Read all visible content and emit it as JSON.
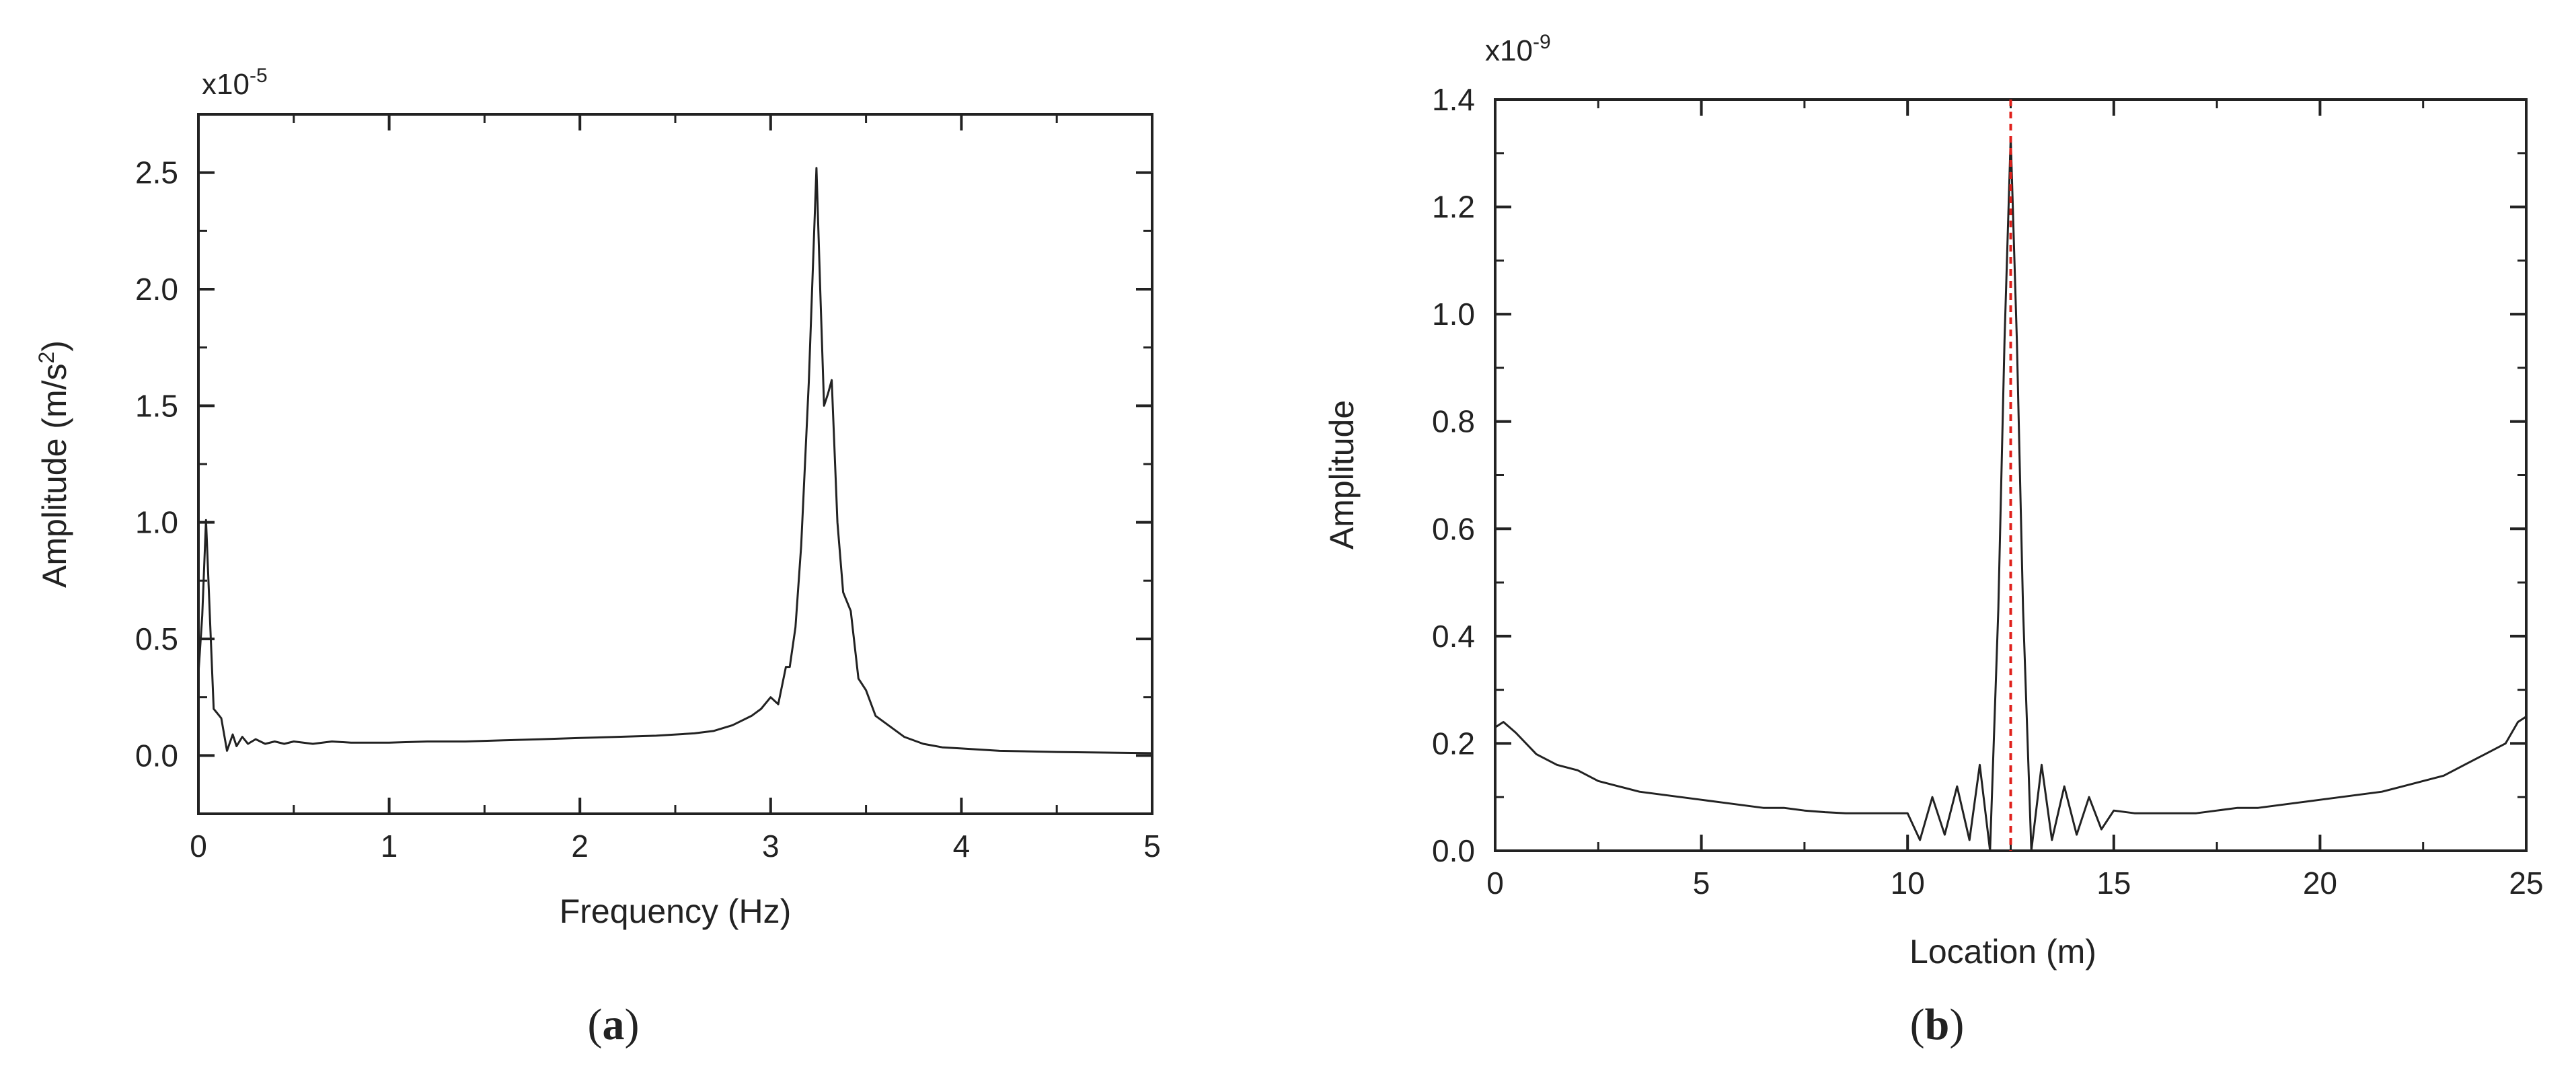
{
  "chart_data": [
    {
      "type": "line",
      "panel_label": "a",
      "xlabel": "Frequency (Hz)",
      "ylabel_main": "Amplitude (m/s",
      "ylabel_sup": "2",
      "ylabel_close": ")",
      "exponent_base": "x10",
      "exponent_power": "-5",
      "xlim": [
        0,
        5
      ],
      "ylim": [
        -0.25,
        2.75
      ],
      "xticks": [
        0,
        1,
        2,
        3,
        4,
        5
      ],
      "xtick_labels": [
        "0",
        "1",
        "2",
        "3",
        "4",
        "5"
      ],
      "yticks": [
        0.0,
        0.5,
        1.0,
        1.5,
        2.0,
        2.5
      ],
      "ytick_labels": [
        "0.0",
        "0.5",
        "1.0",
        "1.5",
        "2.0",
        "2.5"
      ],
      "grid": false,
      "line_color": "#222222",
      "series": [
        {
          "x": [
            0,
            0.02,
            0.04,
            0.06,
            0.08,
            0.1,
            0.12,
            0.15,
            0.18,
            0.2,
            0.23,
            0.26,
            0.3,
            0.35,
            0.4,
            0.45,
            0.5,
            0.6,
            0.7,
            0.8,
            1.0,
            1.2,
            1.4,
            1.6,
            1.8,
            2.0,
            2.2,
            2.4,
            2.6,
            2.7,
            2.8,
            2.9,
            2.95,
            3.0,
            3.04,
            3.08,
            3.1,
            3.13,
            3.16,
            3.2,
            3.24,
            3.26,
            3.28,
            3.3,
            3.32,
            3.35,
            3.38,
            3.42,
            3.46,
            3.5,
            3.55,
            3.6,
            3.7,
            3.8,
            3.9,
            4.0,
            4.2,
            4.5,
            5.0
          ],
          "y": [
            0.35,
            0.6,
            1.01,
            0.6,
            0.2,
            0.18,
            0.16,
            0.02,
            0.09,
            0.04,
            0.08,
            0.05,
            0.07,
            0.05,
            0.06,
            0.05,
            0.06,
            0.05,
            0.06,
            0.055,
            0.055,
            0.06,
            0.06,
            0.065,
            0.07,
            0.075,
            0.08,
            0.085,
            0.095,
            0.105,
            0.13,
            0.17,
            0.2,
            0.25,
            0.22,
            0.38,
            0.38,
            0.55,
            0.9,
            1.6,
            2.52,
            2.0,
            1.5,
            1.55,
            1.61,
            1.0,
            0.7,
            0.62,
            0.33,
            0.28,
            0.17,
            0.14,
            0.08,
            0.05,
            0.035,
            0.03,
            0.02,
            0.015,
            0.01
          ]
        }
      ]
    },
    {
      "type": "line",
      "panel_label": "b",
      "xlabel": "Location (m)",
      "ylabel": "Amplitude",
      "exponent_base": "x10",
      "exponent_power": "-9",
      "xlim": [
        0,
        25
      ],
      "ylim": [
        0,
        1.4
      ],
      "xticks": [
        0,
        5,
        10,
        15,
        20,
        25
      ],
      "xtick_labels": [
        "0",
        "5",
        "10",
        "15",
        "20",
        "25"
      ],
      "yticks": [
        0.0,
        0.2,
        0.4,
        0.6,
        0.8,
        1.0,
        1.2,
        1.4
      ],
      "ytick_labels": [
        "0.0",
        "0.2",
        "0.4",
        "0.6",
        "0.8",
        "1.0",
        "1.2",
        "1.4"
      ],
      "grid": false,
      "line_color": "#222222",
      "marker_line": {
        "x": 12.5,
        "color": "#e0201b",
        "style": "dashed"
      },
      "series": [
        {
          "x": [
            0,
            0.2,
            0.5,
            1,
            1.5,
            2,
            2.5,
            3,
            3.5,
            4,
            4.5,
            5,
            5.5,
            6,
            6.5,
            7,
            7.5,
            8,
            8.5,
            9,
            9.5,
            10,
            10.3,
            10.6,
            10.9,
            11.2,
            11.5,
            11.75,
            12.0,
            12.2,
            12.35,
            12.5,
            12.65,
            12.8,
            13.0,
            13.25,
            13.5,
            13.8,
            14.1,
            14.4,
            14.7,
            15,
            15.5,
            16,
            16.5,
            17,
            17.5,
            18,
            18.5,
            19,
            19.5,
            20,
            20.5,
            21,
            21.5,
            22,
            22.5,
            23,
            23.5,
            24,
            24.5,
            24.8,
            25
          ],
          "y": [
            0.23,
            0.24,
            0.22,
            0.18,
            0.16,
            0.15,
            0.13,
            0.12,
            0.11,
            0.105,
            0.1,
            0.095,
            0.09,
            0.085,
            0.08,
            0.08,
            0.075,
            0.072,
            0.07,
            0.07,
            0.07,
            0.07,
            0.02,
            0.1,
            0.03,
            0.12,
            0.02,
            0.16,
            0.0,
            0.45,
            0.95,
            1.33,
            0.95,
            0.45,
            0.0,
            0.16,
            0.02,
            0.12,
            0.03,
            0.1,
            0.04,
            0.075,
            0.07,
            0.07,
            0.07,
            0.07,
            0.075,
            0.08,
            0.08,
            0.085,
            0.09,
            0.095,
            0.1,
            0.105,
            0.11,
            0.12,
            0.13,
            0.14,
            0.16,
            0.18,
            0.2,
            0.24,
            0.25
          ]
        }
      ]
    }
  ]
}
